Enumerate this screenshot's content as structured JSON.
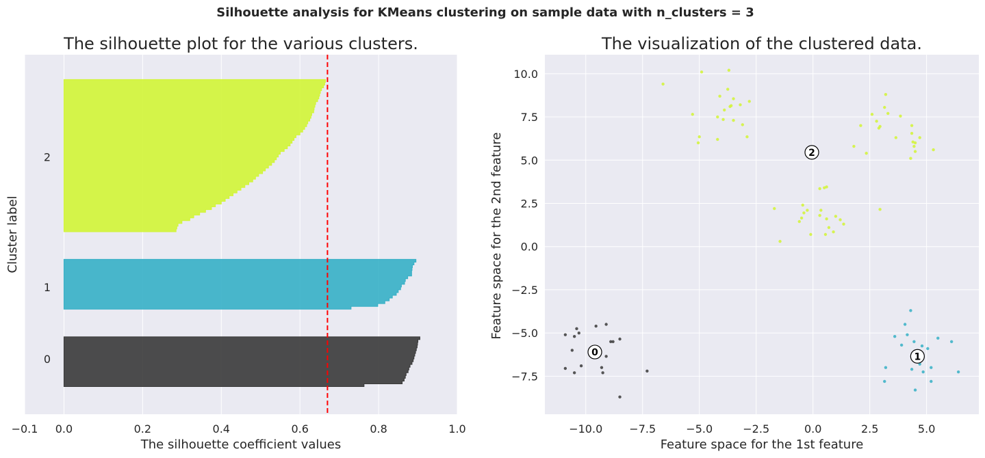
{
  "suptitle": "Silhouette analysis for KMeans clustering on sample data with n_clusters = 3",
  "colors": {
    "background": "#ffffff",
    "axes_face": "#eaeaf2",
    "grid": "#ffffff",
    "text": "#262626",
    "cluster_0": "#3a3a3a",
    "cluster_1": "#36b0c6",
    "cluster_2": "#d2f536",
    "avg_line": "#ff0000"
  },
  "chart_data": [
    {
      "type": "area",
      "title": "The silhouette plot for the various clusters.",
      "xlabel": "The silhouette coefficient values",
      "ylabel": "Cluster label",
      "xlim": [
        -0.1,
        1.0
      ],
      "ylim": [
        0,
        130
      ],
      "grid": true,
      "xticks": [
        -0.1,
        0.0,
        0.2,
        0.4,
        0.6,
        0.8,
        1.0
      ],
      "xtick_labels": [
        "−0.1",
        "0.0",
        "0.2",
        "0.4",
        "0.6",
        "0.8",
        "1.0"
      ],
      "silhouette_avg": 0.67,
      "clusters": [
        {
          "label": "0",
          "label_y": 20,
          "y_lower": 10,
          "y_upper": 28,
          "values": [
            0.905,
            0.9,
            0.899,
            0.898,
            0.896,
            0.894,
            0.892,
            0.89,
            0.888,
            0.885,
            0.88,
            0.877,
            0.875,
            0.87,
            0.868,
            0.865,
            0.86,
            0.763
          ]
        },
        {
          "label": "1",
          "label_y": 46,
          "y_lower": 38,
          "y_upper": 56,
          "values": [
            0.895,
            0.89,
            0.886,
            0.885,
            0.884,
            0.884,
            0.874,
            0.868,
            0.866,
            0.858,
            0.856,
            0.85,
            0.845,
            0.835,
            0.827,
            0.816,
            0.798,
            0.73
          ]
        },
        {
          "label": "2",
          "label_y": 93,
          "y_lower": 66,
          "y_upper": 121,
          "values": [
            0.665,
            0.663,
            0.66,
            0.655,
            0.652,
            0.65,
            0.648,
            0.645,
            0.64,
            0.638,
            0.636,
            0.635,
            0.63,
            0.628,
            0.625,
            0.62,
            0.617,
            0.612,
            0.607,
            0.6,
            0.59,
            0.585,
            0.58,
            0.575,
            0.568,
            0.56,
            0.55,
            0.545,
            0.54,
            0.535,
            0.528,
            0.52,
            0.512,
            0.505,
            0.495,
            0.487,
            0.48,
            0.47,
            0.46,
            0.45,
            0.44,
            0.43,
            0.42,
            0.41,
            0.4,
            0.385,
            0.375,
            0.36,
            0.345,
            0.33,
            0.32,
            0.3,
            0.29,
            0.287,
            0.285
          ]
        }
      ]
    },
    {
      "type": "scatter",
      "title": "The visualization of the clustered data.",
      "xlabel": "Feature space for the 1st feature",
      "ylabel": "Feature space for the 2nd feature",
      "xlim": [
        -11.8,
        7.3
      ],
      "ylim": [
        -9.7,
        11.1
      ],
      "grid": true,
      "xticks": [
        -10.0,
        -7.5,
        -5.0,
        -2.5,
        0.0,
        2.5,
        5.0
      ],
      "xtick_labels": [
        "−10.0",
        "−7.5",
        "−5.0",
        "−2.5",
        "0.0",
        "2.5",
        "5.0"
      ],
      "yticks": [
        -7.5,
        -5.0,
        -2.5,
        0.0,
        2.5,
        5.0,
        7.5,
        10.0
      ],
      "ytick_labels": [
        "−7.5",
        "−5.0",
        "−2.5",
        "0.0",
        "2.5",
        "5.0",
        "7.5",
        "10.0"
      ],
      "series": [
        {
          "cluster": "0",
          "points": [
            [
              -10.9,
              -5.1
            ],
            [
              -10.5,
              -5.2
            ],
            [
              -10.6,
              -6.0
            ],
            [
              -10.4,
              -4.75
            ],
            [
              -10.3,
              -5.0
            ],
            [
              -10.9,
              -7.05
            ],
            [
              -10.5,
              -7.3
            ],
            [
              -10.2,
              -6.9
            ],
            [
              -9.55,
              -4.6
            ],
            [
              -9.1,
              -4.5
            ],
            [
              -8.9,
              -5.5
            ],
            [
              -8.8,
              -5.5
            ],
            [
              -8.5,
              -5.35
            ],
            [
              -9.3,
              -7.0
            ],
            [
              -9.25,
              -7.3
            ],
            [
              -9.1,
              -6.35
            ],
            [
              -7.3,
              -7.2
            ],
            [
              -8.5,
              -8.7
            ],
            [
              -9.65,
              -6.1
            ]
          ]
        },
        {
          "cluster": "1",
          "points": [
            [
              4.3,
              -3.7
            ],
            [
              3.6,
              -5.2
            ],
            [
              4.05,
              -4.5
            ],
            [
              4.15,
              -5.1
            ],
            [
              3.9,
              -5.7
            ],
            [
              4.45,
              -5.5
            ],
            [
              4.8,
              -5.75
            ],
            [
              5.05,
              -5.9
            ],
            [
              5.5,
              -5.3
            ],
            [
              6.1,
              -5.5
            ],
            [
              3.2,
              -7.0
            ],
            [
              4.35,
              -7.1
            ],
            [
              4.7,
              -6.8
            ],
            [
              4.85,
              -7.25
            ],
            [
              5.2,
              -7.0
            ],
            [
              6.4,
              -7.25
            ],
            [
              3.15,
              -7.8
            ],
            [
              4.5,
              -8.3
            ],
            [
              5.2,
              -7.8
            ],
            [
              4.7,
              -6.3
            ]
          ]
        },
        {
          "cluster": "2",
          "points": [
            [
              -6.6,
              9.4
            ],
            [
              -4.9,
              10.1
            ],
            [
              -3.7,
              10.2
            ],
            [
              -5.3,
              7.65
            ],
            [
              -5.0,
              6.35
            ],
            [
              -5.05,
              6.0
            ],
            [
              -4.2,
              6.2
            ],
            [
              -3.95,
              7.35
            ],
            [
              -4.2,
              7.5
            ],
            [
              -4.1,
              8.7
            ],
            [
              -3.9,
              7.9
            ],
            [
              -3.75,
              9.1
            ],
            [
              -3.6,
              8.15
            ],
            [
              -3.65,
              8.1
            ],
            [
              -3.5,
              8.55
            ],
            [
              -3.5,
              7.3
            ],
            [
              -3.2,
              8.2
            ],
            [
              -3.1,
              7.05
            ],
            [
              -2.9,
              6.35
            ],
            [
              -2.8,
              8.4
            ],
            [
              -1.7,
              2.2
            ],
            [
              -1.45,
              0.3
            ],
            [
              -0.6,
              1.45
            ],
            [
              -0.5,
              1.65
            ],
            [
              -0.45,
              2.4
            ],
            [
              -0.4,
              1.95
            ],
            [
              -0.25,
              2.1
            ],
            [
              -0.1,
              0.7
            ],
            [
              0.3,
              3.35
            ],
            [
              0.3,
              1.8
            ],
            [
              0.35,
              2.1
            ],
            [
              0.5,
              3.4
            ],
            [
              0.6,
              3.45
            ],
            [
              0.6,
              1.6
            ],
            [
              0.7,
              1.1
            ],
            [
              0.9,
              0.85
            ],
            [
              1.0,
              1.75
            ],
            [
              1.2,
              1.55
            ],
            [
              1.35,
              1.3
            ],
            [
              0.55,
              0.7
            ],
            [
              1.8,
              5.8
            ],
            [
              2.1,
              7.0
            ],
            [
              2.35,
              5.4
            ],
            [
              2.6,
              7.65
            ],
            [
              2.8,
              7.25
            ],
            [
              2.9,
              6.85
            ],
            [
              2.95,
              6.95
            ],
            [
              3.15,
              8.05
            ],
            [
              3.2,
              8.8
            ],
            [
              3.3,
              7.7
            ],
            [
              3.65,
              6.3
            ],
            [
              3.85,
              7.55
            ],
            [
              4.35,
              7.0
            ],
            [
              4.35,
              6.55
            ],
            [
              4.4,
              6.05
            ],
            [
              4.45,
              5.8
            ],
            [
              4.5,
              5.5
            ],
            [
              4.5,
              6.0
            ],
            [
              4.3,
              5.1
            ],
            [
              4.7,
              6.3
            ],
            [
              5.3,
              5.6
            ],
            [
              2.95,
              2.15
            ],
            [
              -0.05,
              5.45
            ]
          ]
        }
      ],
      "centers": [
        {
          "label": "0",
          "x": -9.6,
          "y": -6.1
        },
        {
          "label": "1",
          "x": 4.6,
          "y": -6.35
        },
        {
          "label": "2",
          "x": -0.05,
          "y": 5.45
        }
      ]
    }
  ]
}
